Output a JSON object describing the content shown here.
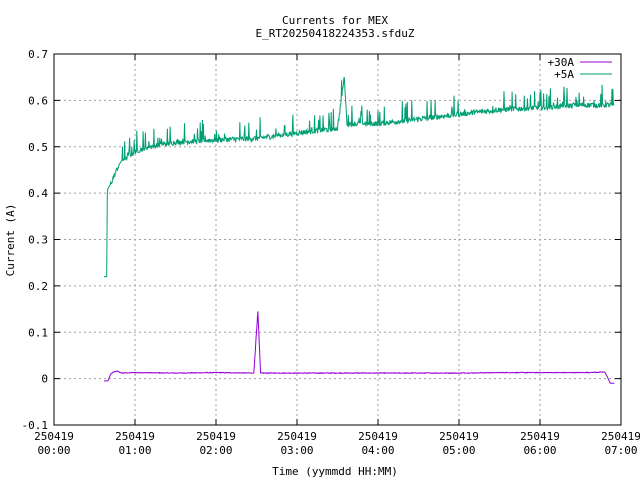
{
  "chart_data": {
    "type": "line",
    "title": "Currents for MEX",
    "subtitle": "E_RT20250418224353.sfduZ",
    "xlabel": "Time (yymmdd HH:MM)",
    "ylabel": "Current (A)",
    "xlim": [
      "2025-04-19 00:00",
      "2025-04-19 07:00"
    ],
    "ylim": [
      -0.1,
      0.7
    ],
    "grid": true,
    "legend_position": "top-right",
    "x_ticks": [
      {
        "date": "250419",
        "time": "00:00"
      },
      {
        "date": "250419",
        "time": "01:00"
      },
      {
        "date": "250419",
        "time": "02:00"
      },
      {
        "date": "250419",
        "time": "03:00"
      },
      {
        "date": "250419",
        "time": "04:00"
      },
      {
        "date": "250419",
        "time": "05:00"
      },
      {
        "date": "250419",
        "time": "06:00"
      },
      {
        "date": "250419",
        "time": "07:00"
      }
    ],
    "y_ticks": [
      "-0.1",
      "0",
      "0.1",
      "0.2",
      "0.3",
      "0.4",
      "0.5",
      "0.6",
      "0.7"
    ],
    "series": [
      {
        "name": "+30A",
        "color": "#9400d3",
        "points": [
          [
            "00:37",
            -0.005
          ],
          [
            "00:40",
            -0.005
          ],
          [
            "00:42",
            0.01
          ],
          [
            "00:44",
            0.014
          ],
          [
            "00:47",
            0.016
          ],
          [
            "00:50",
            0.012
          ],
          [
            "01:00",
            0.013
          ],
          [
            "01:30",
            0.012
          ],
          [
            "02:00",
            0.013
          ],
          [
            "02:28",
            0.012
          ],
          [
            "02:31",
            0.145
          ],
          [
            "02:33",
            0.012
          ],
          [
            "03:00",
            0.012
          ],
          [
            "03:30",
            0.012
          ],
          [
            "04:00",
            0.012
          ],
          [
            "04:30",
            0.012
          ],
          [
            "05:00",
            0.012
          ],
          [
            "05:30",
            0.013
          ],
          [
            "06:00",
            0.013
          ],
          [
            "06:30",
            0.013
          ],
          [
            "06:48",
            0.014
          ],
          [
            "06:50",
            0.003
          ],
          [
            "06:52",
            -0.01
          ],
          [
            "06:55",
            -0.01
          ]
        ]
      },
      {
        "name": "+5A",
        "color": "#009e73",
        "points": [
          [
            "00:37",
            0.22
          ],
          [
            "00:39",
            0.22
          ],
          [
            "00:39.5",
            0.4
          ],
          [
            "00:40",
            0.41
          ],
          [
            "00:42",
            0.42
          ],
          [
            "00:45",
            0.44
          ],
          [
            "00:48",
            0.46
          ],
          [
            "00:50",
            0.47
          ],
          [
            "00:55",
            0.48
          ],
          [
            "01:00",
            0.49
          ],
          [
            "01:10",
            0.5
          ],
          [
            "01:20",
            0.505
          ],
          [
            "01:30",
            0.51
          ],
          [
            "02:00",
            0.515
          ],
          [
            "02:30",
            0.518
          ],
          [
            "03:00",
            0.53
          ],
          [
            "03:30",
            0.54
          ],
          [
            "03:35",
            0.65
          ],
          [
            "03:37",
            0.55
          ],
          [
            "04:00",
            0.55
          ],
          [
            "04:30",
            0.56
          ],
          [
            "05:00",
            0.57
          ],
          [
            "05:30",
            0.58
          ],
          [
            "06:00",
            0.585
          ],
          [
            "06:30",
            0.59
          ],
          [
            "06:55",
            0.59
          ]
        ]
      }
    ]
  }
}
